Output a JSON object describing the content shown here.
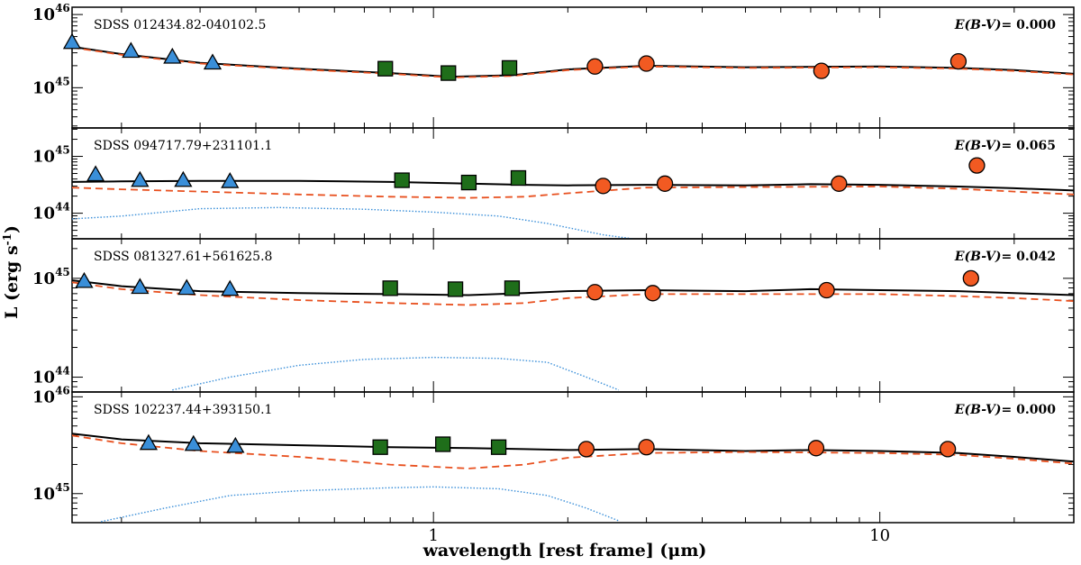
{
  "chart_data": {
    "type": "scatter",
    "xlabel": "wavelength [rest frame] (μm)",
    "ylabel_html": "L (erg s-1)",
    "ylabel_base": "L (erg s",
    "ylabel_exp": "-1",
    "ylabel_close": ")",
    "x_scale": "log",
    "y_scale": "log",
    "xlim": [
      0.155,
      27.2
    ],
    "x_ticks": [
      1,
      10
    ],
    "x_tick_labels": [
      "1",
      "10"
    ],
    "ebv_label": "E(B-V)",
    "panels": [
      {
        "object": "SDSS 012434.82-040102.5",
        "ebv_value": "= 0.000",
        "ylim_log": [
          44.45,
          46.1
        ],
        "y_ticks_log": [
          45,
          46
        ],
        "y_tick_base": "10",
        "y_tick_exps": [
          "45",
          "46"
        ],
        "sdss_points": [
          [
            0.155,
            45.62
          ],
          [
            0.21,
            45.5
          ],
          [
            0.26,
            45.42
          ],
          [
            0.32,
            45.34
          ]
        ],
        "twomass_points": [
          [
            0.78,
            45.26
          ],
          [
            1.08,
            45.2
          ],
          [
            1.48,
            45.27
          ]
        ],
        "wise_points": [
          [
            2.3,
            45.29
          ],
          [
            3.0,
            45.33
          ],
          [
            7.4,
            45.23
          ],
          [
            15.0,
            45.36
          ]
        ],
        "total_model": [
          [
            0.155,
            45.56
          ],
          [
            0.2,
            45.46
          ],
          [
            0.3,
            45.34
          ],
          [
            0.5,
            45.26
          ],
          [
            0.8,
            45.2
          ],
          [
            1.1,
            45.15
          ],
          [
            1.5,
            45.17
          ],
          [
            2.0,
            45.25
          ],
          [
            3.0,
            45.3
          ],
          [
            5.0,
            45.28
          ],
          [
            10.0,
            45.29
          ],
          [
            15.0,
            45.27
          ],
          [
            20.0,
            45.24
          ],
          [
            27.2,
            45.19
          ]
        ],
        "agn_model": [
          [
            0.155,
            45.55
          ],
          [
            0.2,
            45.45
          ],
          [
            0.3,
            45.33
          ],
          [
            0.5,
            45.25
          ],
          [
            0.8,
            45.19
          ],
          [
            1.1,
            45.14
          ],
          [
            1.5,
            45.16
          ],
          [
            2.0,
            45.24
          ],
          [
            3.0,
            45.29
          ],
          [
            5.0,
            45.27
          ],
          [
            10.0,
            45.28
          ],
          [
            15.0,
            45.26
          ],
          [
            20.0,
            45.23
          ],
          [
            27.2,
            45.18
          ]
        ],
        "host_model": []
      },
      {
        "object": "SDSS 094717.79+231101.1",
        "ebv_value": "= 0.065",
        "ylim_log": [
          43.55,
          45.5
        ],
        "y_ticks_log": [
          44,
          45
        ],
        "y_tick_base": "10",
        "y_tick_exps": [
          "44",
          "45"
        ],
        "sdss_points": [
          [
            0.175,
            44.68
          ],
          [
            0.22,
            44.58
          ],
          [
            0.275,
            44.58
          ],
          [
            0.35,
            44.56
          ]
        ],
        "twomass_points": [
          [
            0.85,
            44.58
          ],
          [
            1.2,
            44.54
          ],
          [
            1.55,
            44.62
          ]
        ],
        "wise_points": [
          [
            2.4,
            44.48
          ],
          [
            3.3,
            44.52
          ],
          [
            8.1,
            44.52
          ],
          [
            16.5,
            44.84
          ]
        ],
        "total_model": [
          [
            0.155,
            44.55
          ],
          [
            0.2,
            44.56
          ],
          [
            0.3,
            44.57
          ],
          [
            0.5,
            44.57
          ],
          [
            0.8,
            44.55
          ],
          [
            1.2,
            44.52
          ],
          [
            1.6,
            44.5
          ],
          [
            2.0,
            44.49
          ],
          [
            3.0,
            44.5
          ],
          [
            5.0,
            44.49
          ],
          [
            7.0,
            44.51
          ],
          [
            10.0,
            44.5
          ],
          [
            15.0,
            44.47
          ],
          [
            20.0,
            44.44
          ],
          [
            27.2,
            44.4
          ]
        ],
        "agn_model": [
          [
            0.155,
            44.45
          ],
          [
            0.2,
            44.42
          ],
          [
            0.3,
            44.38
          ],
          [
            0.5,
            44.33
          ],
          [
            0.8,
            44.29
          ],
          [
            1.2,
            44.27
          ],
          [
            1.6,
            44.29
          ],
          [
            2.0,
            44.35
          ],
          [
            3.0,
            44.45
          ],
          [
            5.0,
            44.46
          ],
          [
            10.0,
            44.47
          ],
          [
            15.0,
            44.43
          ],
          [
            20.0,
            44.38
          ],
          [
            27.2,
            44.33
          ]
        ],
        "host_model": [
          [
            0.155,
            43.9
          ],
          [
            0.2,
            43.95
          ],
          [
            0.3,
            44.08
          ],
          [
            0.45,
            44.1
          ],
          [
            0.7,
            44.07
          ],
          [
            1.0,
            44.02
          ],
          [
            1.4,
            43.95
          ],
          [
            1.8,
            43.82
          ],
          [
            2.4,
            43.62
          ],
          [
            2.8,
            43.55
          ]
        ]
      },
      {
        "object": "SDSS 081327.61+561625.8",
        "ebv_value": "= 0.042",
        "ylim_log": [
          43.85,
          45.4
        ],
        "y_ticks_log": [
          44,
          45
        ],
        "y_tick_base": "10",
        "y_tick_exps": [
          "44",
          "45"
        ],
        "sdss_points": [
          [
            0.165,
            44.97
          ],
          [
            0.22,
            44.91
          ],
          [
            0.28,
            44.9
          ],
          [
            0.35,
            44.89
          ]
        ],
        "twomass_points": [
          [
            0.8,
            44.9
          ],
          [
            1.12,
            44.89
          ],
          [
            1.5,
            44.9
          ]
        ],
        "wise_points": [
          [
            2.3,
            44.86
          ],
          [
            3.1,
            44.85
          ],
          [
            7.6,
            44.88
          ],
          [
            16.0,
            45.0
          ]
        ],
        "total_model": [
          [
            0.155,
            44.98
          ],
          [
            0.2,
            44.92
          ],
          [
            0.3,
            44.87
          ],
          [
            0.5,
            44.85
          ],
          [
            0.8,
            44.84
          ],
          [
            1.2,
            44.83
          ],
          [
            1.6,
            44.85
          ],
          [
            2.0,
            44.87
          ],
          [
            3.0,
            44.88
          ],
          [
            5.0,
            44.87
          ],
          [
            7.0,
            44.89
          ],
          [
            10.0,
            44.88
          ],
          [
            15.0,
            44.87
          ],
          [
            20.0,
            44.85
          ],
          [
            27.2,
            44.83
          ]
        ],
        "agn_model": [
          [
            0.155,
            44.96
          ],
          [
            0.2,
            44.89
          ],
          [
            0.3,
            44.83
          ],
          [
            0.5,
            44.78
          ],
          [
            0.8,
            44.75
          ],
          [
            1.2,
            44.73
          ],
          [
            1.6,
            44.75
          ],
          [
            2.0,
            44.8
          ],
          [
            3.0,
            44.84
          ],
          [
            5.0,
            44.84
          ],
          [
            10.0,
            44.84
          ],
          [
            15.0,
            44.82
          ],
          [
            20.0,
            44.8
          ],
          [
            27.2,
            44.77
          ]
        ],
        "host_model": [
          [
            0.26,
            43.87
          ],
          [
            0.35,
            44.0
          ],
          [
            0.5,
            44.12
          ],
          [
            0.7,
            44.18
          ],
          [
            1.0,
            44.2
          ],
          [
            1.4,
            44.19
          ],
          [
            1.8,
            44.15
          ],
          [
            2.2,
            44.0
          ],
          [
            2.6,
            43.87
          ]
        ]
      },
      {
        "object": "SDSS 102237.44+393150.1",
        "ebv_value": "= 0.000",
        "ylim_log": [
          44.7,
          46.05
        ],
        "y_ticks_log": [
          45,
          46
        ],
        "y_tick_base": "10",
        "y_tick_exps": [
          "45",
          "46"
        ],
        "sdss_points": [
          [
            0.23,
            45.52
          ],
          [
            0.29,
            45.51
          ],
          [
            0.36,
            45.49
          ]
        ],
        "twomass_points": [
          [
            0.76,
            45.48
          ],
          [
            1.05,
            45.51
          ],
          [
            1.4,
            45.48
          ]
        ],
        "wise_points": [
          [
            2.2,
            45.46
          ],
          [
            3.0,
            45.48
          ],
          [
            7.2,
            45.47
          ],
          [
            14.2,
            45.46
          ]
        ],
        "total_model": [
          [
            0.155,
            45.62
          ],
          [
            0.2,
            45.56
          ],
          [
            0.3,
            45.52
          ],
          [
            0.5,
            45.5
          ],
          [
            0.8,
            45.48
          ],
          [
            1.2,
            45.47
          ],
          [
            1.6,
            45.46
          ],
          [
            2.0,
            45.45
          ],
          [
            3.0,
            45.46
          ],
          [
            5.0,
            45.44
          ],
          [
            7.0,
            45.45
          ],
          [
            10.0,
            45.44
          ],
          [
            15.0,
            45.42
          ],
          [
            20.0,
            45.38
          ],
          [
            27.2,
            45.33
          ]
        ],
        "agn_model": [
          [
            0.155,
            45.6
          ],
          [
            0.2,
            45.52
          ],
          [
            0.3,
            45.44
          ],
          [
            0.5,
            45.38
          ],
          [
            0.8,
            45.3
          ],
          [
            1.2,
            45.26
          ],
          [
            1.6,
            45.3
          ],
          [
            2.0,
            45.37
          ],
          [
            3.0,
            45.42
          ],
          [
            5.0,
            45.43
          ],
          [
            10.0,
            45.42
          ],
          [
            15.0,
            45.4
          ],
          [
            20.0,
            45.36
          ],
          [
            27.2,
            45.31
          ]
        ],
        "host_model": [
          [
            0.18,
            44.71
          ],
          [
            0.25,
            44.85
          ],
          [
            0.35,
            44.98
          ],
          [
            0.5,
            45.03
          ],
          [
            0.8,
            45.06
          ],
          [
            1.0,
            45.07
          ],
          [
            1.4,
            45.05
          ],
          [
            1.8,
            44.98
          ],
          [
            2.2,
            44.85
          ],
          [
            2.6,
            44.72
          ]
        ]
      }
    ],
    "colors": {
      "sdss": "#3a8fd9",
      "twomass": "#1f6e1a",
      "wise": "#f25a22",
      "total": "#000000",
      "agn": "#e8501f",
      "host": "#3a8fd9"
    }
  }
}
